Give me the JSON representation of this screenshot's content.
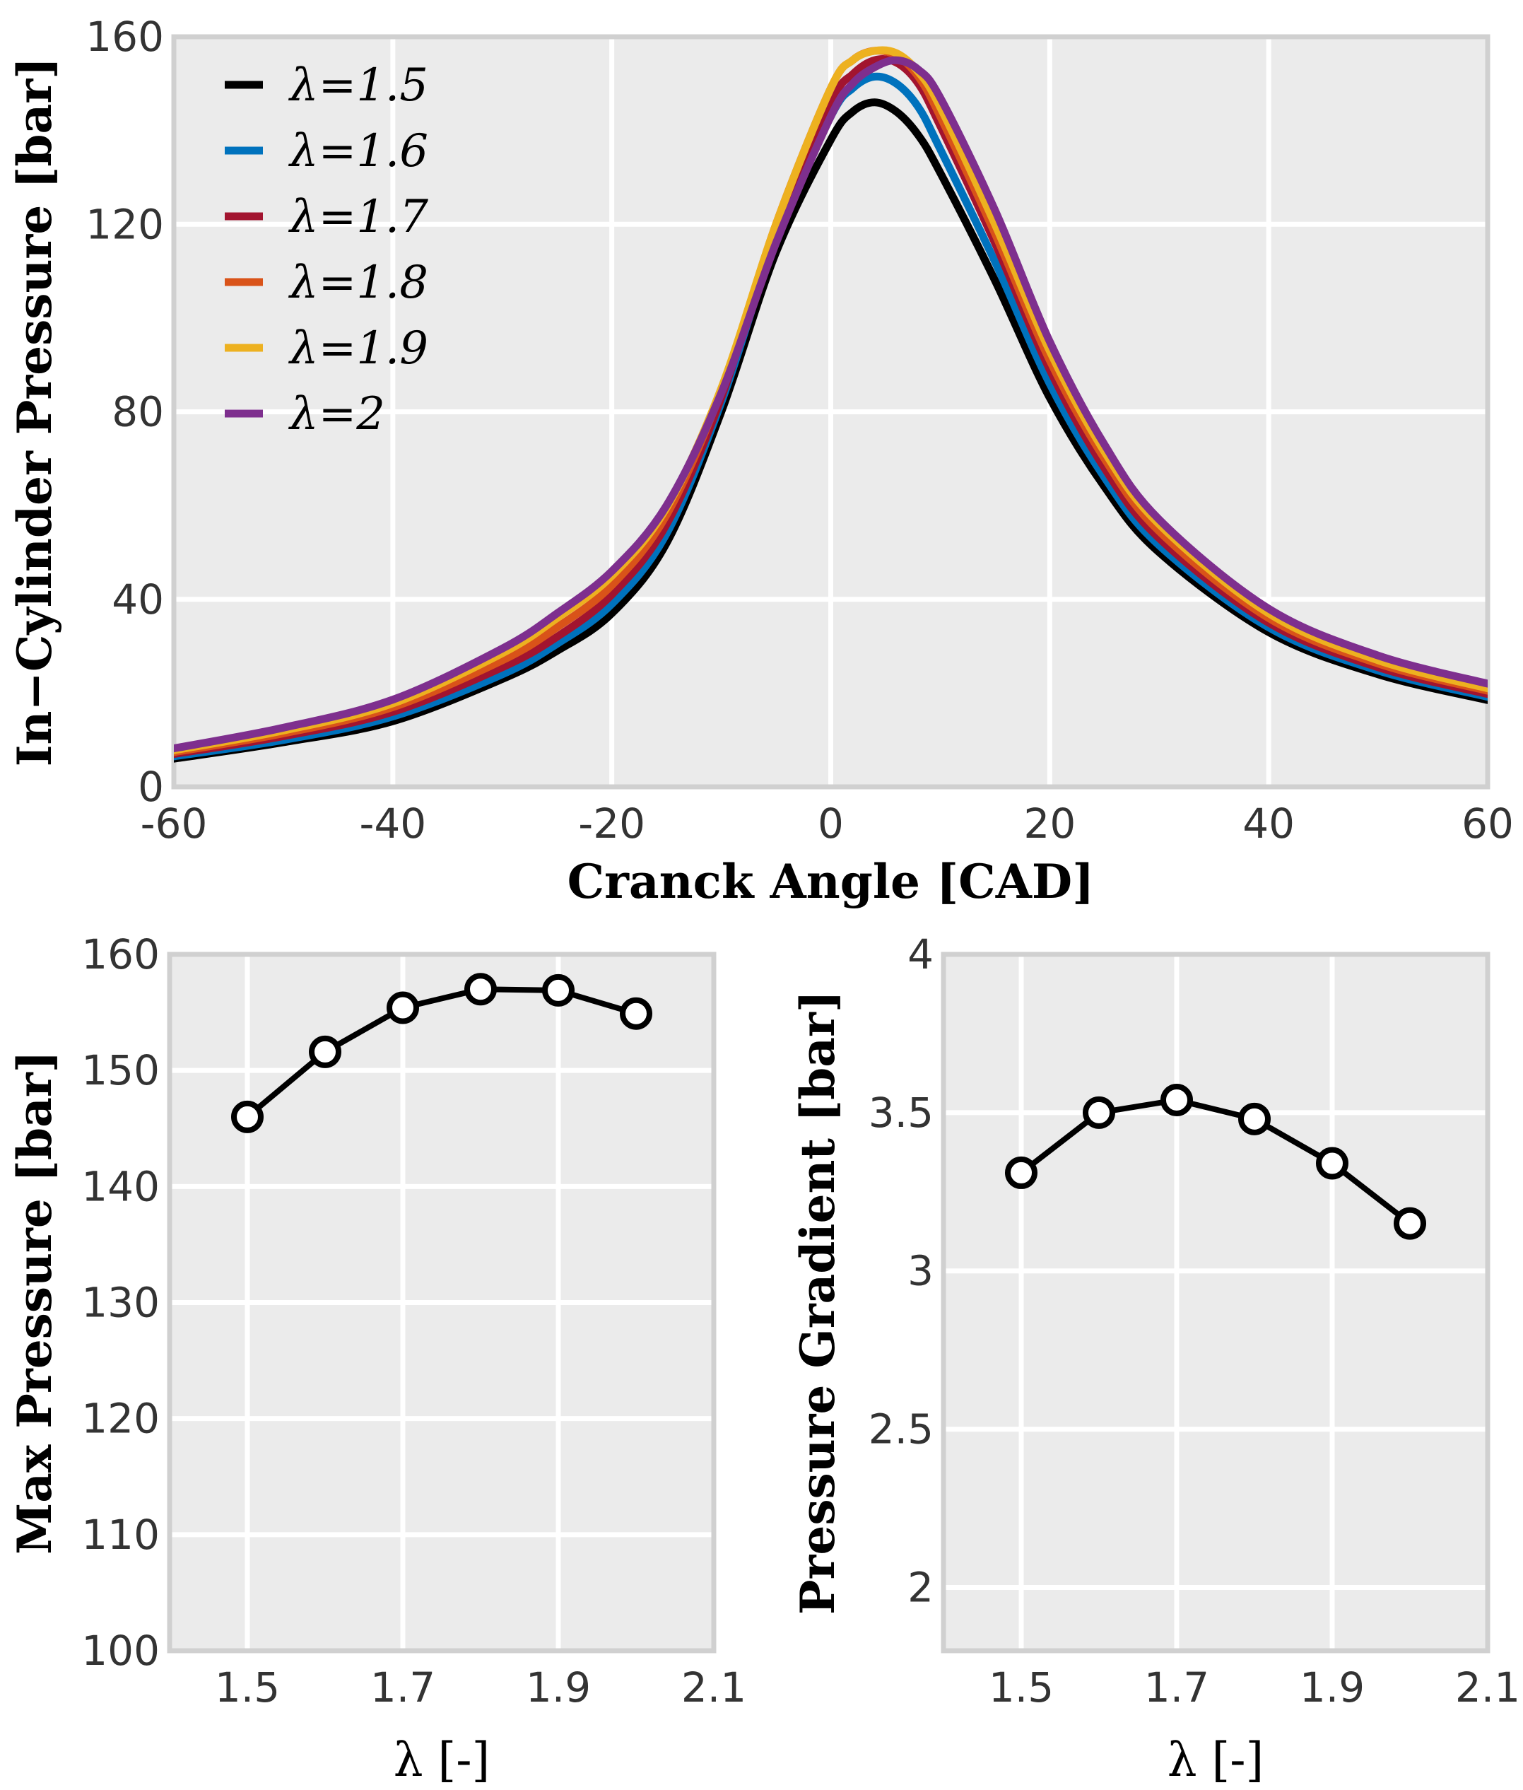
{
  "colors": {
    "panel_bg": "#ebebeb",
    "grid": "#ffffff",
    "frame": "#d0d0d0",
    "marker_face": "#ffffff",
    "marker_edge": "#000000"
  },
  "chart_data": [
    {
      "type": "line",
      "title": "",
      "xlabel": "Cranck Angle [CAD]",
      "ylabel": "In−Cylinder Pressure [bar]",
      "xlim": [
        -60,
        60
      ],
      "ylim": [
        0,
        160
      ],
      "xticks": [
        "-60",
        "-40",
        "-20",
        "0",
        "20",
        "40",
        "60"
      ],
      "yticks": [
        "0",
        "40",
        "80",
        "120",
        "160"
      ],
      "xtick_values": [
        -60,
        -40,
        -20,
        0,
        20,
        40,
        60
      ],
      "ytick_values": [
        0,
        40,
        80,
        120,
        160
      ],
      "legend_position": "top-left",
      "x": [
        -60,
        -50,
        -40,
        -30,
        -25,
        -20,
        -15,
        -10,
        -5,
        0,
        2,
        4,
        6,
        8,
        10,
        15,
        20,
        25,
        30,
        40,
        50,
        60
      ],
      "series": [
        {
          "name": "λ=1.5",
          "color": "#000000",
          "values": [
            6,
            9.5,
            14,
            23,
            29,
            37,
            52,
            80,
            114,
            138,
            144,
            146,
            144,
            139,
            131,
            108,
            83,
            64,
            50,
            33,
            24,
            18.5
          ]
        },
        {
          "name": "λ=1.6",
          "color": "#0072bd",
          "values": [
            6.5,
            10,
            15,
            24,
            30.5,
            39,
            54,
            82,
            117,
            143,
            149,
            151.5,
            150,
            145,
            136,
            112,
            86,
            66,
            51.5,
            34,
            24.8,
            19.2
          ]
        },
        {
          "name": "λ=1.7",
          "color": "#a2142f",
          "values": [
            7,
            10.8,
            16,
            25.5,
            32,
            41,
            56,
            83,
            119,
            146,
            152,
            155,
            154.5,
            150,
            141,
            116,
            89,
            68,
            53,
            35,
            25.5,
            19.8
          ]
        },
        {
          "name": "λ=1.8",
          "color": "#d95319",
          "values": [
            7.4,
            11.4,
            17,
            27,
            34,
            43,
            58,
            84.5,
            120,
            149,
            155,
            157,
            156,
            151.5,
            143,
            118,
            91,
            70,
            54.5,
            36,
            26.3,
            20.5
          ]
        },
        {
          "name": "λ=1.9",
          "color": "#edb120",
          "values": [
            7.8,
            12,
            17.8,
            28.5,
            36,
            45,
            59.5,
            85,
            120,
            149,
            155,
            157,
            156.5,
            152.5,
            145,
            120,
            93,
            71.5,
            56,
            37,
            27,
            21
          ]
        },
        {
          "name": "λ=2",
          "color": "#7e2f8e",
          "values": [
            8.2,
            12.6,
            18.6,
            29.5,
            37,
            46,
            60,
            84,
            116,
            143,
            150,
            153.5,
            155,
            153,
            147,
            123,
            95,
            73,
            57,
            38,
            28,
            22
          ]
        }
      ]
    },
    {
      "type": "line",
      "title": "",
      "xlabel": "λ [-]",
      "ylabel": "Max Pressure [bar]",
      "xlim": [
        1.4,
        2.1
      ],
      "ylim": [
        100,
        160
      ],
      "xticks": [
        "1.5",
        "1.7",
        "1.9",
        "2.1"
      ],
      "yticks": [
        "100",
        "110",
        "120",
        "130",
        "140",
        "150",
        "160"
      ],
      "xtick_values": [
        1.5,
        1.7,
        1.9,
        2.1
      ],
      "ytick_values": [
        100,
        110,
        120,
        130,
        140,
        150,
        160
      ],
      "x_grid": [
        1.5,
        1.7,
        1.9
      ],
      "marker": "circle",
      "x": [
        1.5,
        1.6,
        1.7,
        1.8,
        1.9,
        2.0
      ],
      "series": [
        {
          "name": "Max Pressure",
          "color": "#000000",
          "values": [
            146,
            151.6,
            155.4,
            157,
            156.9,
            154.9
          ]
        }
      ]
    },
    {
      "type": "line",
      "title": "",
      "xlabel": "λ [-]",
      "ylabel": "Pressure Gradient [bar]",
      "xlim": [
        1.4,
        2.1
      ],
      "ylim": [
        1.8,
        4
      ],
      "xticks": [
        "1.5",
        "1.7",
        "1.9",
        "2.1"
      ],
      "yticks": [
        "2",
        "2.5",
        "3",
        "3.5",
        "4"
      ],
      "xtick_values": [
        1.5,
        1.7,
        1.9,
        2.1
      ],
      "ytick_values": [
        2,
        2.5,
        3,
        3.5,
        4
      ],
      "x_grid": [
        1.5,
        1.7,
        1.9
      ],
      "marker": "circle",
      "x": [
        1.5,
        1.6,
        1.7,
        1.8,
        1.9,
        2.0
      ],
      "series": [
        {
          "name": "Pressure Gradient",
          "color": "#000000",
          "values": [
            3.31,
            3.5,
            3.54,
            3.48,
            3.34,
            3.15
          ]
        }
      ]
    }
  ]
}
